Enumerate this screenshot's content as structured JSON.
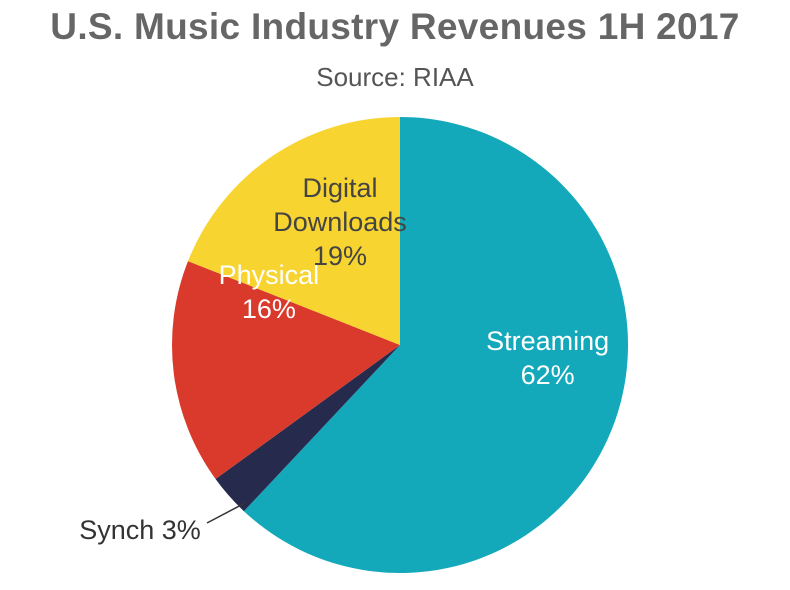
{
  "chart_data": {
    "type": "pie",
    "title": "U.S. Music Industry Revenues 1H 2017",
    "subtitle": "Source: RIAA",
    "slices": [
      {
        "label_lines": [
          "Streaming",
          "62%"
        ],
        "value": 62,
        "color": "#14a8bb",
        "text_color": "#ffffff"
      },
      {
        "label_lines": [
          "Synch 3%"
        ],
        "value": 3,
        "color": "#262b4d",
        "text_color": "#333333"
      },
      {
        "label_lines": [
          "Physical",
          "16%"
        ],
        "value": 16,
        "color": "#d93a2b",
        "text_color": "#ffffff"
      },
      {
        "label_lines": [
          "Digital",
          "Downloads",
          "19%"
        ],
        "value": 19,
        "color": "#f7d430",
        "text_color": "#444444"
      }
    ],
    "legend": "none"
  }
}
